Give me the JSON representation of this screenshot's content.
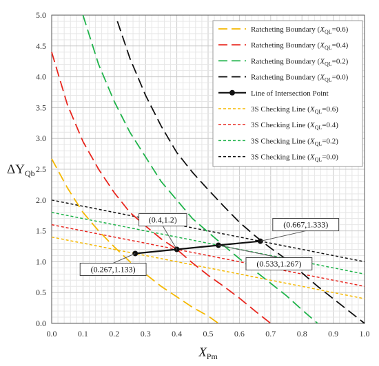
{
  "chart_data": {
    "type": "line",
    "xlabel": "X",
    "xlabel_sub": "Pm",
    "ylabel": "ΔY",
    "ylabel_sub": "Qb",
    "xlim": [
      0.0,
      1.0
    ],
    "ylim": [
      0.0,
      5.0
    ],
    "xticks": [
      "0.0",
      "0.1",
      "0.2",
      "0.3",
      "0.4",
      "0.5",
      "0.6",
      "0.7",
      "0.8",
      "0.9",
      "1.0"
    ],
    "yticks": [
      "0.0",
      "0.5",
      "1.0",
      "1.5",
      "2.0",
      "2.5",
      "3.0",
      "3.5",
      "4.0",
      "4.5",
      "5.0"
    ],
    "grid": true,
    "legend_position": "top-right",
    "colors": {
      "q06": "#f5b800",
      "q04": "#e8261e",
      "q02": "#1fb34a",
      "q00": "#111111",
      "intersection": "#111111"
    },
    "series": [
      {
        "name": "Ratcheting Boundary",
        "qualifier": "=0.6",
        "style": "long-dash",
        "color_key": "q06",
        "x": [
          0.0,
          0.05,
          0.1,
          0.15,
          0.2,
          0.25,
          0.3,
          0.35,
          0.4,
          0.45,
          0.5,
          0.533
        ],
        "y": [
          2.67,
          2.2,
          1.8,
          1.5,
          1.24,
          1.0,
          0.8,
          0.6,
          0.43,
          0.26,
          0.12,
          0.0
        ]
      },
      {
        "name": "Ratcheting Boundary",
        "qualifier": "=0.4",
        "style": "long-dash",
        "color_key": "q04",
        "x": [
          0.0,
          0.05,
          0.1,
          0.15,
          0.2,
          0.25,
          0.3,
          0.35,
          0.4,
          0.45,
          0.5,
          0.55,
          0.6,
          0.65,
          0.7
        ],
        "y": [
          4.4,
          3.55,
          2.95,
          2.5,
          2.12,
          1.8,
          1.58,
          1.37,
          1.2,
          0.98,
          0.78,
          0.6,
          0.41,
          0.2,
          0.0
        ]
      },
      {
        "name": "Ratcheting Boundary",
        "qualifier": "=0.2",
        "style": "long-dash",
        "color_key": "q02",
        "x": [
          0.1,
          0.15,
          0.2,
          0.25,
          0.3,
          0.35,
          0.4,
          0.45,
          0.5,
          0.55,
          0.6,
          0.65,
          0.7,
          0.75,
          0.8,
          0.85
        ],
        "y": [
          5.0,
          4.2,
          3.6,
          3.1,
          2.7,
          2.3,
          2.0,
          1.7,
          1.48,
          1.26,
          1.05,
          0.85,
          0.65,
          0.45,
          0.22,
          0.0
        ]
      },
      {
        "name": "Ratcheting Boundary",
        "qualifier": "=0.0",
        "style": "long-dash",
        "color_key": "q00",
        "x": [
          0.21,
          0.25,
          0.3,
          0.35,
          0.4,
          0.45,
          0.5,
          0.55,
          0.6,
          0.65,
          0.7,
          0.75,
          0.8,
          0.85,
          0.9,
          0.95,
          1.0
        ],
        "y": [
          4.9,
          4.3,
          3.7,
          3.2,
          2.77,
          2.45,
          2.17,
          1.9,
          1.64,
          1.42,
          1.22,
          1.04,
          0.82,
          0.6,
          0.4,
          0.2,
          0.0
        ]
      },
      {
        "name": "Line of Intersection Point",
        "qualifier": "",
        "style": "solid-marker",
        "color_key": "intersection",
        "x": [
          0.267,
          0.4,
          0.533,
          0.667
        ],
        "y": [
          1.133,
          1.2,
          1.267,
          1.333
        ]
      },
      {
        "name": "3S Checking Line",
        "qualifier": "=0.6",
        "style": "short-dash",
        "color_key": "q06",
        "x": [
          0.0,
          1.0
        ],
        "y": [
          1.4,
          0.4
        ]
      },
      {
        "name": "3S Checking Line",
        "qualifier": "=0.4",
        "style": "short-dash",
        "color_key": "q04",
        "x": [
          0.0,
          1.0
        ],
        "y": [
          1.6,
          0.6
        ]
      },
      {
        "name": "3S Checking Line",
        "qualifier": "=0.2",
        "style": "short-dash",
        "color_key": "q02",
        "x": [
          0.0,
          1.0
        ],
        "y": [
          1.8,
          0.8
        ]
      },
      {
        "name": "3S Checking Line",
        "qualifier": "=0.0",
        "style": "short-dash",
        "color_key": "q00",
        "x": [
          0.0,
          1.0
        ],
        "y": [
          2.0,
          1.0
        ]
      }
    ],
    "legend_var": "X",
    "legend_var_sub": "QL",
    "annotations": [
      {
        "text": "(0.4,1.2)",
        "x": 0.4,
        "y": 1.2
      },
      {
        "text": "(0.667,1.333)",
        "x": 0.667,
        "y": 1.333
      },
      {
        "text": "(0.267,1.133)",
        "x": 0.267,
        "y": 1.133
      },
      {
        "text": "(0.533,1.267)",
        "x": 0.533,
        "y": 1.267
      }
    ]
  }
}
